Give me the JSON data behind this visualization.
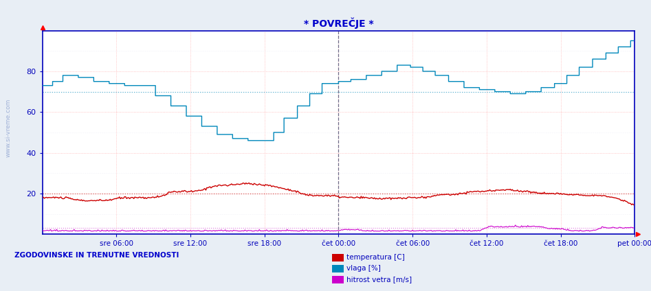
{
  "title": "* POVREČJE *",
  "bg_color": "#e8eef5",
  "plot_bg_color": "#ffffff",
  "grid_color_v": "#ffaaaa",
  "grid_color_h": "#ffaaaa",
  "grid_minor_color": "#ddddee",
  "ylim": [
    0,
    100
  ],
  "yticks": [
    20,
    40,
    60,
    80
  ],
  "n_points": 576,
  "x_tick_positions": [
    72,
    144,
    216,
    288,
    360,
    432,
    504,
    576
  ],
  "x_labels": [
    "sre 06:00",
    "sre 12:00",
    "sre 18:00",
    "čet 00:00",
    "čet 06:00",
    "čet 12:00",
    "čet 18:00",
    "pet 00:00"
  ],
  "title_color": "#0000cc",
  "tick_color": "#0000bb",
  "axis_color": "#0000bb",
  "highlight_x": 288,
  "highlight_color": "#555577",
  "highlight_style": "--",
  "dotted_cyan_y": 70,
  "dotted_cyan_color": "#44aacc",
  "dotted_red_y": 20,
  "dotted_red_color": "#cc4444",
  "dotted_magenta_y": 3,
  "dotted_magenta_color": "#cc44cc",
  "label_bottom_left": "ZGODOVINSKE IN TRENUTNE VREDNOSTI",
  "legend_items": [
    {
      "label": "temperatura [C]",
      "color": "#cc0000"
    },
    {
      "label": "vlaga [%]",
      "color": "#0088bb"
    },
    {
      "label": "hitrost vetra [m/s]",
      "color": "#cc00cc"
    }
  ],
  "watermark": "www.si-vreme.com",
  "watermark_color": "#3355aa"
}
